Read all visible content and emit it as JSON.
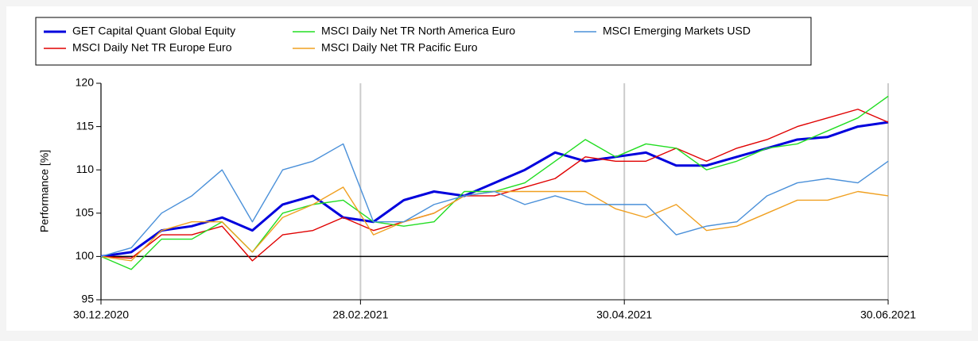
{
  "chart_data": {
    "type": "line",
    "y_label": "Performance [%]",
    "x": [
      "30.12.2020",
      "06.01.2021",
      "13.01.2021",
      "20.01.2021",
      "27.01.2021",
      "03.02.2021",
      "10.02.2021",
      "17.02.2021",
      "24.02.2021",
      "03.03.2021",
      "10.03.2021",
      "17.03.2021",
      "24.03.2021",
      "31.03.2021",
      "07.04.2021",
      "14.04.2021",
      "21.04.2021",
      "28.04.2021",
      "05.05.2021",
      "12.05.2021",
      "19.05.2021",
      "26.05.2021",
      "02.06.2021",
      "09.06.2021",
      "16.06.2021",
      "23.06.2021",
      "30.06.2021"
    ],
    "series": [
      {
        "name": "GET Capital Quant Global Equity",
        "color": "#0000dd",
        "width": 3,
        "values": [
          100,
          100.5,
          103,
          103.5,
          104.5,
          103,
          106,
          107,
          104.5,
          104,
          106.5,
          107.5,
          107,
          108.5,
          110,
          112,
          111,
          111.5,
          112,
          110.5,
          110.5,
          111.5,
          112.5,
          113.5,
          113.8,
          115,
          115.5
        ]
      },
      {
        "name": "MSCI Daily Net TR Europe Euro",
        "color": "#e00000",
        "width": 1.4,
        "values": [
          100,
          99.8,
          102.5,
          102.5,
          103.5,
          99.5,
          102.5,
          103,
          104.5,
          103,
          104,
          105,
          107,
          107,
          108,
          109,
          111.5,
          111,
          111,
          112.5,
          111,
          112.5,
          113.5,
          115,
          116,
          117,
          115.5
        ]
      },
      {
        "name": "MSCI Daily Net TR North America Euro",
        "color": "#22dd22",
        "width": 1.4,
        "values": [
          100,
          98.5,
          102,
          102,
          104,
          100.5,
          105,
          106,
          106.5,
          104,
          103.5,
          104,
          107.5,
          107.5,
          108.5,
          111,
          113.5,
          111.5,
          113,
          112.5,
          110,
          111,
          112.5,
          113,
          114.5,
          116,
          118.5
        ]
      },
      {
        "name": "MSCI Daily Net TR Pacific Euro",
        "color": "#f0a020",
        "width": 1.4,
        "values": [
          100,
          99.5,
          103,
          104,
          104,
          100.5,
          104.5,
          106,
          108,
          102.5,
          104,
          105,
          107,
          107.5,
          107.5,
          107.5,
          107.5,
          105.5,
          104.5,
          106,
          103,
          103.5,
          105,
          106.5,
          106.5,
          107.5,
          107
        ]
      },
      {
        "name": "MSCI Emerging Markets USD",
        "color": "#4a90d9",
        "width": 1.4,
        "values": [
          100,
          101,
          105,
          107,
          110,
          104,
          110,
          111,
          113,
          104,
          104,
          106,
          107,
          107.5,
          106,
          107,
          106,
          106,
          106,
          102.5,
          103.5,
          104,
          107,
          108.5,
          109,
          108.5,
          111
        ]
      }
    ],
    "xlim": [
      "30.12.2020",
      "30.06.2021"
    ],
    "xticks": [
      "30.12.2020",
      "28.02.2021",
      "30.04.2021",
      "30.06.2021"
    ],
    "ylim": [
      95,
      120
    ],
    "yticks": [
      95,
      100,
      105,
      110,
      115,
      120
    ],
    "reference_line": 100,
    "grid": true
  }
}
